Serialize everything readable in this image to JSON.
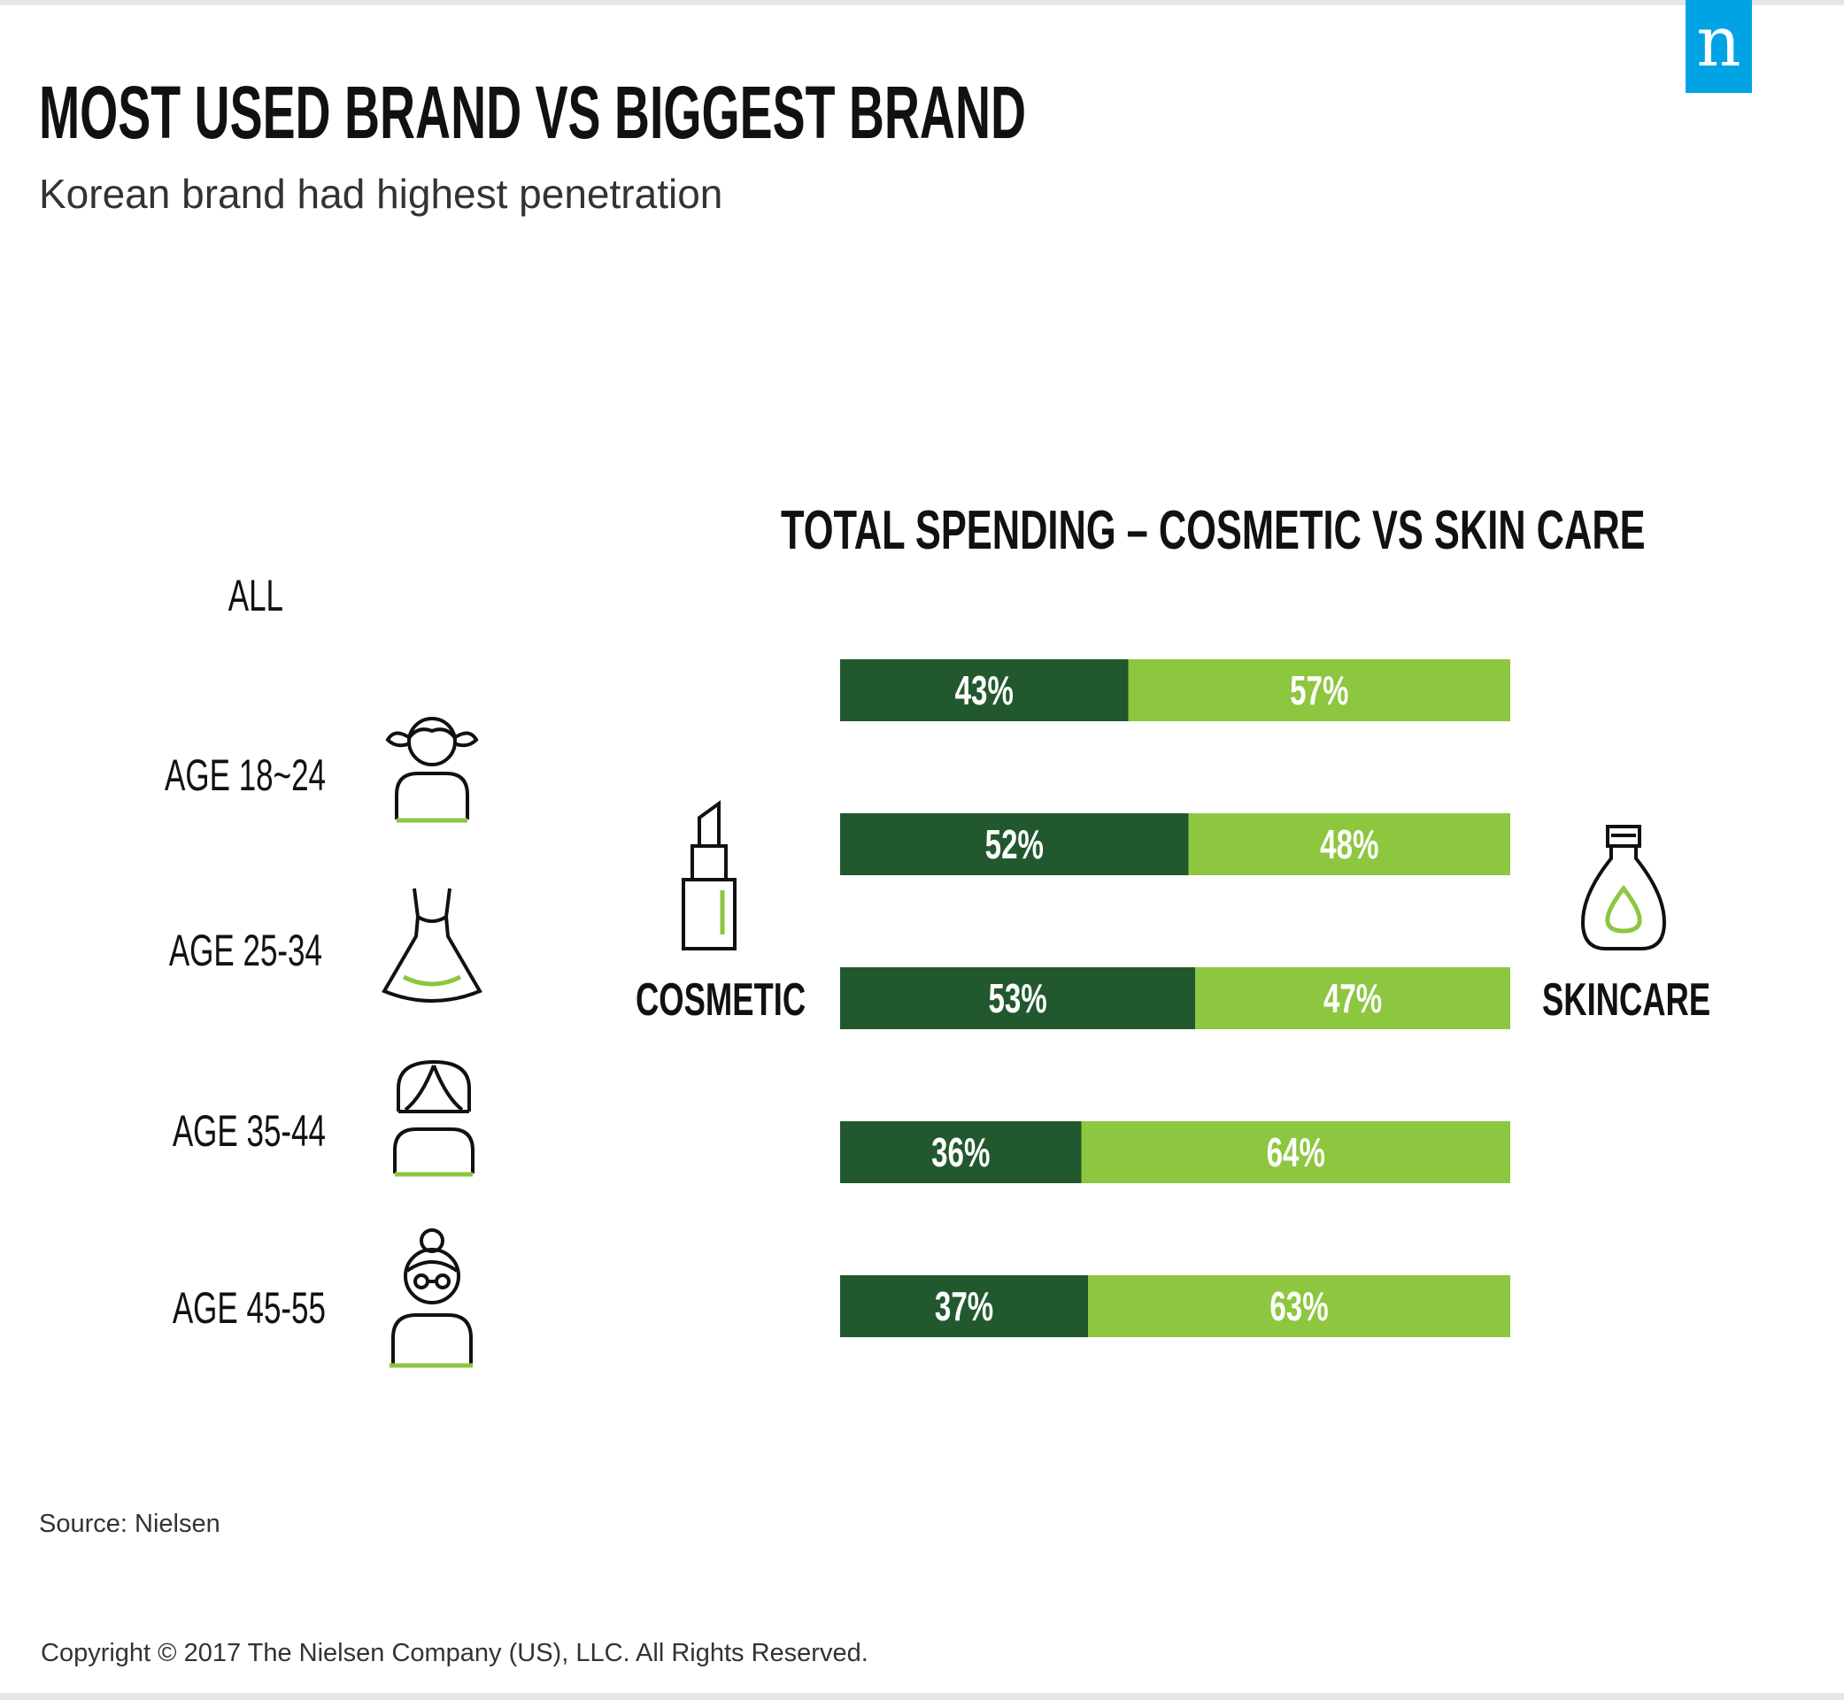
{
  "header": {
    "title": "MOST USED BRAND VS BIGGEST BRAND",
    "subtitle": "Korean brand had highest penetration"
  },
  "logo": {
    "letter": "n"
  },
  "side_labels": {
    "left": "COSMETIC",
    "right": "SKINCARE"
  },
  "footer": {
    "source": "Source: Nielsen",
    "copyright": "Copyright © 2017 The Nielsen Company (US), LLC. All Rights Reserved."
  },
  "colors": {
    "cosmetic": "#22582d",
    "skincare": "#8dc63f",
    "accent": "#8dc63f",
    "logo": "#00a4e4"
  },
  "icons": [
    "girl-pigtails-icon",
    "dress-icon",
    "woman-icon",
    "older-woman-glasses-icon",
    "lipstick-icon",
    "lotion-bottle-icon"
  ],
  "chart_data": {
    "type": "bar",
    "stacked": true,
    "orientation": "horizontal",
    "title": "TOTAL SPENDING – COSMETIC VS SKIN CARE",
    "categories": [
      "ALL",
      "AGE 18~24",
      "AGE 25-34",
      "AGE 35-44",
      "AGE 45-55"
    ],
    "series": [
      {
        "name": "COSMETIC",
        "values": [
          43,
          52,
          53,
          36,
          37
        ]
      },
      {
        "name": "SKINCARE",
        "values": [
          57,
          48,
          47,
          64,
          63
        ]
      }
    ],
    "value_labels": [
      [
        "43%",
        "52%",
        "53%",
        "36%",
        "37%"
      ],
      [
        "57%",
        "48%",
        "47%",
        "64%",
        "63%"
      ]
    ],
    "xlim": [
      0,
      100
    ]
  }
}
